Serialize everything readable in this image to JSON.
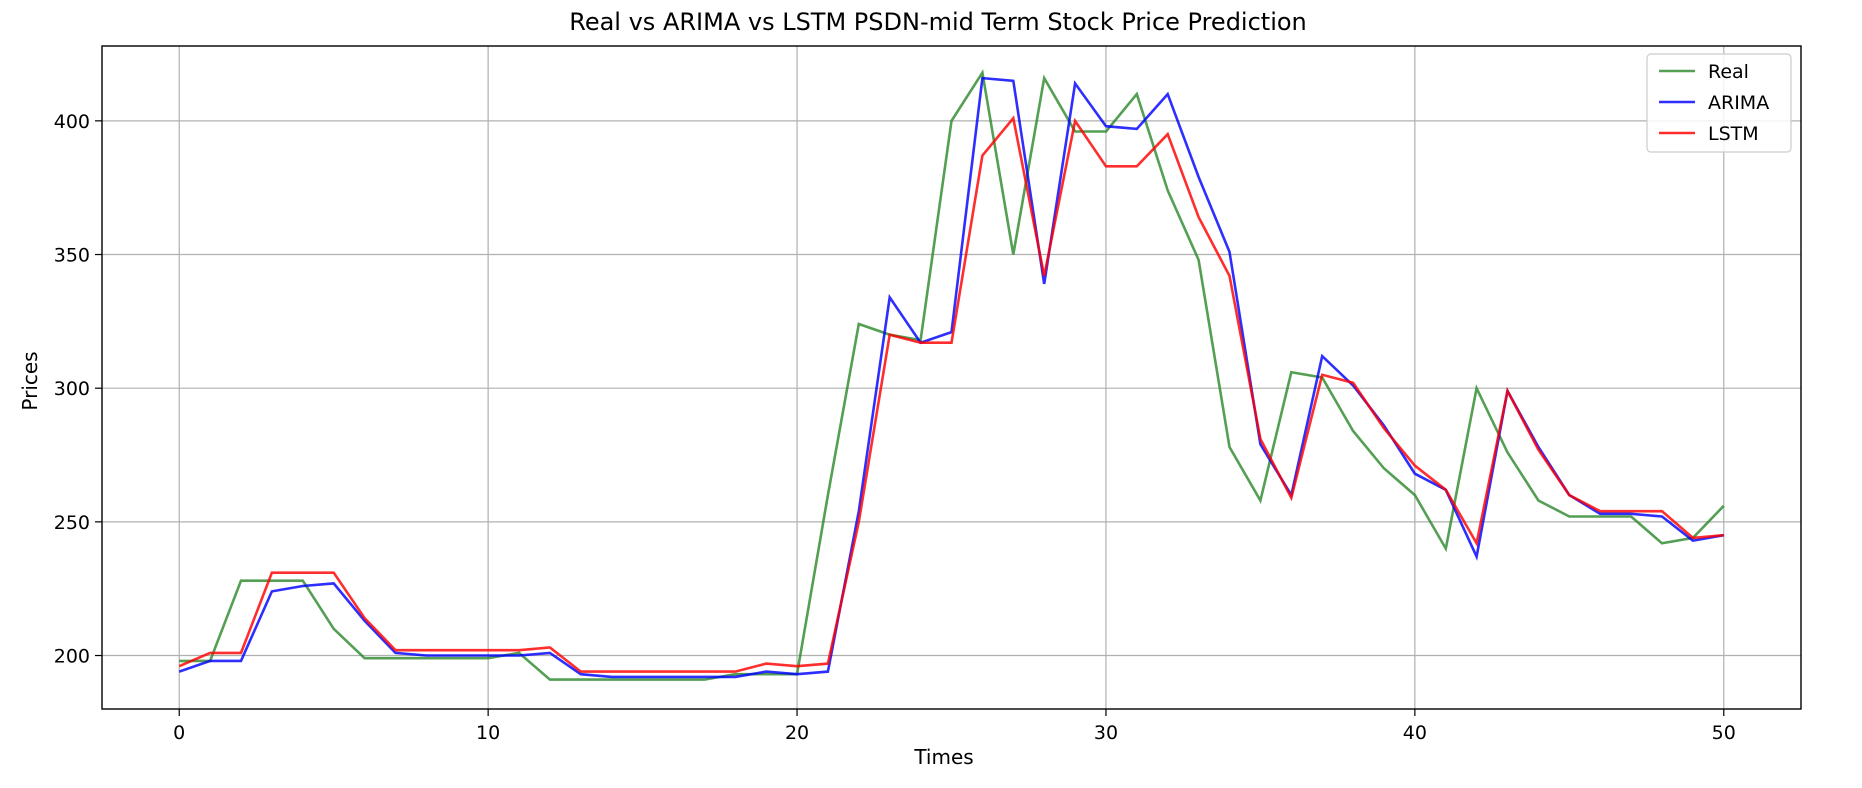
{
  "chart_data": {
    "type": "line",
    "title": "Real vs ARIMA vs LSTM PSDN-mid Term Stock Price Prediction",
    "xlabel": "Times",
    "ylabel": "Prices",
    "xlim": [
      -2.5,
      52.5
    ],
    "ylim": [
      180,
      428
    ],
    "xticks": [
      0,
      10,
      20,
      30,
      40,
      50
    ],
    "yticks": [
      200,
      250,
      300,
      350,
      400
    ],
    "grid": true,
    "legend_position": "top-right",
    "x": [
      0,
      1,
      2,
      3,
      4,
      5,
      6,
      7,
      8,
      9,
      10,
      11,
      12,
      13,
      14,
      15,
      16,
      17,
      18,
      19,
      20,
      21,
      22,
      23,
      24,
      25,
      26,
      27,
      28,
      29,
      30,
      31,
      32,
      33,
      34,
      35,
      36,
      37,
      38,
      39,
      40,
      41,
      42,
      43,
      44,
      45,
      46,
      47,
      48,
      49,
      50
    ],
    "series": [
      {
        "name": "Real",
        "color": "#2e8a2e",
        "values": [
          198,
          198,
          228,
          228,
          228,
          210,
          199,
          199,
          199,
          199,
          199,
          201,
          191,
          191,
          191,
          191,
          191,
          191,
          193,
          193,
          193,
          260,
          324,
          320,
          318,
          400,
          418,
          350,
          416,
          396,
          396,
          410,
          374,
          348,
          278,
          258,
          306,
          304,
          284,
          270,
          260,
          240,
          300,
          276,
          258,
          252,
          252,
          252,
          242,
          244,
          256
        ]
      },
      {
        "name": "ARIMA",
        "color": "#0000ff",
        "values": [
          194,
          198,
          198,
          224,
          226,
          227,
          213,
          201,
          200,
          200,
          200,
          200,
          201,
          193,
          192,
          192,
          192,
          192,
          192,
          194,
          193,
          194,
          254,
          334,
          317,
          321,
          416,
          415,
          339,
          414,
          398,
          397,
          410,
          379,
          351,
          279,
          260,
          312,
          301,
          286,
          268,
          262,
          237,
          299,
          278,
          260,
          253,
          253,
          252,
          243,
          245
        ]
      },
      {
        "name": "LSTM",
        "color": "#ff0000",
        "values": [
          196,
          201,
          201,
          231,
          231,
          231,
          214,
          202,
          202,
          202,
          202,
          202,
          203,
          194,
          194,
          194,
          194,
          194,
          194,
          197,
          196,
          197,
          250,
          320,
          317,
          317,
          387,
          401,
          342,
          400,
          383,
          383,
          395,
          364,
          342,
          281,
          259,
          305,
          302,
          285,
          271,
          262,
          242,
          299,
          277,
          260,
          254,
          254,
          254,
          244,
          245
        ]
      }
    ]
  }
}
